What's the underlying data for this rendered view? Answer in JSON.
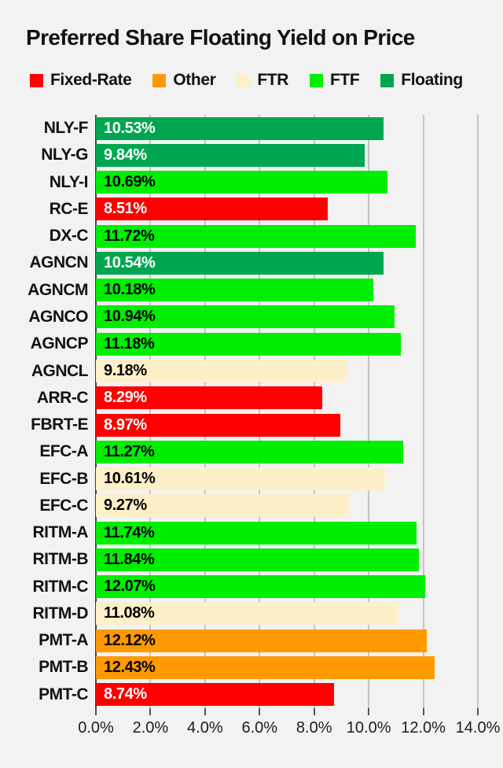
{
  "title": "Preferred Share Floating Yield on Price",
  "legend": {
    "items": [
      {
        "label": "Fixed-Rate",
        "color": "#fe0000"
      },
      {
        "label": "Other",
        "color": "#ff9900"
      },
      {
        "label": "FTR",
        "color": "#fdf0c9"
      },
      {
        "label": "FTF",
        "color": "#00ee00"
      },
      {
        "label": "Floating",
        "color": "#00a64f"
      }
    ]
  },
  "group_styles": {
    "Fixed-Rate": {
      "color": "#fe0000",
      "text_color": "#ffffff"
    },
    "Other": {
      "color": "#ff9900",
      "text_color": "#000000"
    },
    "FTR": {
      "color": "#fdf0c9",
      "text_color": "#000000"
    },
    "FTF": {
      "color": "#00ee00",
      "text_color": "#000000"
    },
    "Floating": {
      "color": "#00a64f",
      "text_color": "#ffffff"
    }
  },
  "chart_data": {
    "type": "bar",
    "orientation": "horizontal",
    "title": "Preferred Share Floating Yield on Price",
    "categories": [
      "NLY-F",
      "NLY-G",
      "NLY-I",
      "RC-E",
      "DX-C",
      "AGNCN",
      "AGNCM",
      "AGNCO",
      "AGNCP",
      "AGNCL",
      "ARR-C",
      "FBRT-E",
      "EFC-A",
      "EFC-B",
      "EFC-C",
      "RITM-A",
      "RITM-B",
      "RITM-C",
      "RITM-D",
      "PMT-A",
      "PMT-B",
      "PMT-C"
    ],
    "values": [
      10.53,
      9.84,
      10.69,
      8.51,
      11.72,
      10.54,
      10.18,
      10.94,
      11.18,
      9.18,
      8.29,
      8.97,
      11.27,
      10.61,
      9.27,
      11.74,
      11.84,
      12.07,
      11.08,
      12.12,
      12.43,
      8.74
    ],
    "bar_labels": [
      "10.53%",
      "9.84%",
      "10.69%",
      "8.51%",
      "11.72%",
      "10.54%",
      "10.18%",
      "10.94%",
      "11.18%",
      "9.18%",
      "8.29%",
      "8.97%",
      "11.27%",
      "10.61%",
      "9.27%",
      "11.74%",
      "11.84%",
      "12.07%",
      "11.08%",
      "12.12%",
      "12.43%",
      "8.74%"
    ],
    "groups": [
      "Floating",
      "Floating",
      "FTF",
      "Fixed-Rate",
      "FTF",
      "Floating",
      "FTF",
      "FTF",
      "FTF",
      "FTR",
      "Fixed-Rate",
      "Fixed-Rate",
      "FTF",
      "FTR",
      "FTR",
      "FTF",
      "FTF",
      "FTF",
      "FTR",
      "Other",
      "Other",
      "Fixed-Rate"
    ],
    "xlabel": "",
    "ylabel": "",
    "xlim": [
      0,
      14
    ],
    "x_tick_labels": [
      "0.0%",
      "2.0%",
      "4.0%",
      "6.0%",
      "8.0%",
      "10.0%",
      "12.0%",
      "14.0%"
    ],
    "x_tick_values": [
      0,
      2,
      4,
      6,
      8,
      10,
      12,
      14
    ],
    "grid": true,
    "legend_position": "top"
  },
  "colors": {
    "background": "#f2f2f2",
    "gridline": "#c3c3c3",
    "zero_axis": "#3f3f3f",
    "tick": "#555555",
    "text": "#121212"
  }
}
